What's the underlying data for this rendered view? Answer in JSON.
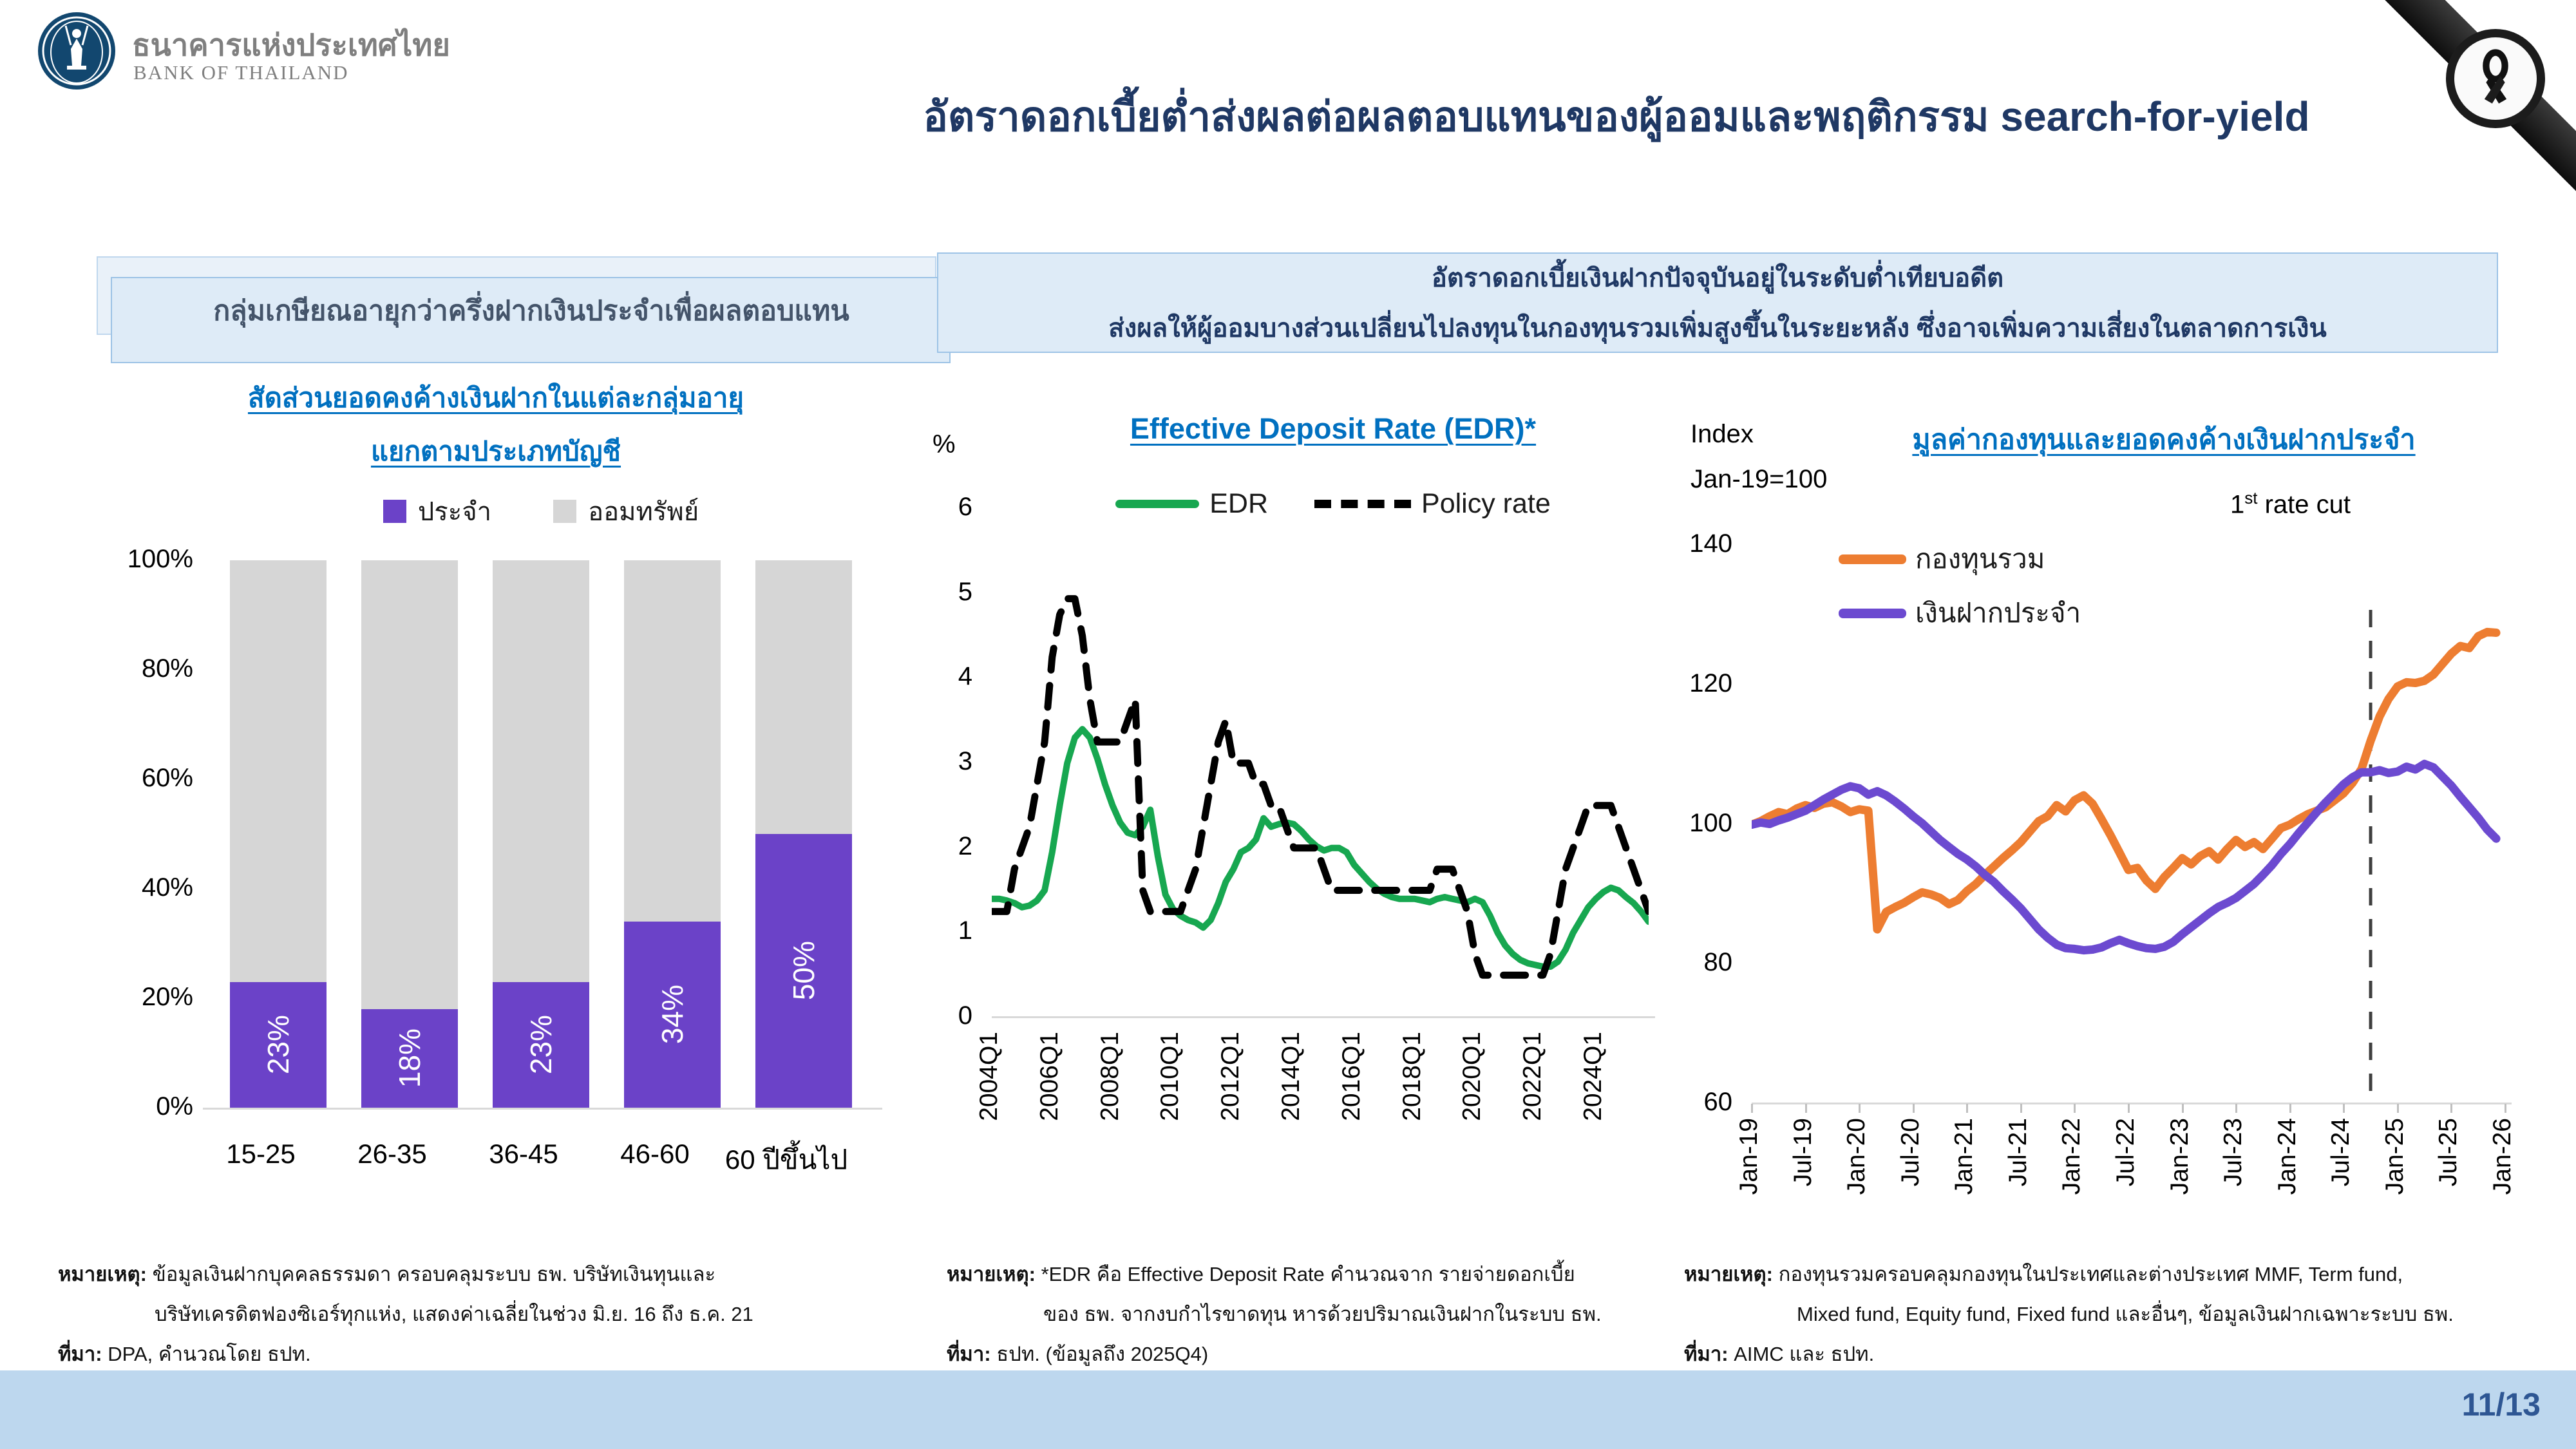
{
  "header": {
    "bank_name_th": "ธนาคารแห่งประเทศไทย",
    "bank_name_en": "BANK OF THAILAND",
    "title": "อัตราดอกเบี้ยต่ำส่งผลต่อผลตอบแทนของผู้ออมและพฤติกรรม search-for-yield"
  },
  "left_panel": {
    "headline": "กลุ่มเกษียณอายุกว่าครึ่งฝากเงินประจำเพื่อผลตอบแทน",
    "chart_title_line1": "สัดส่วนยอดคงค้างเงินฝากในแต่ละกลุ่มอายุ",
    "chart_title_line2": "แยกตามประเภทบัญชี",
    "note_label": "หมายเหตุ:",
    "note_line1": "ข้อมูลเงินฝากบุคคลธรรมดา ครอบคลุมระบบ ธพ. บริษัทเงินทุนและ",
    "note_line2": "บริษัทเครดิตฟองซิเอร์ทุกแห่ง, แสดงค่าเฉลี่ยในช่วง มิ.ย. 16 ถึง ธ.ค. 21",
    "source_label": "ที่มา:",
    "source_text": "DPA, คำนวณโดย ธปท."
  },
  "center_headline": {
    "line1": "อัตราดอกเบี้ยเงินฝากปัจจุบันอยู่ในระดับต่ำเทียบอดีต",
    "line2": "ส่งผลให้ผู้ออมบางส่วนเปลี่ยนไปลงทุนในกองทุนรวมเพิ่มสูงขึ้นในระยะหลัง ซึ่งอาจเพิ่มความเสี่ยงในตลาดการเงิน"
  },
  "middle_panel": {
    "y_axis_label": "%",
    "chart_title": "Effective Deposit Rate (EDR)*",
    "note_label": "หมายเหตุ:",
    "note_line1": "*EDR คือ Effective Deposit Rate คำนวณจาก รายจ่ายดอกเบี้ย",
    "note_line2": "ของ ธพ. จากงบกำไรขาดทุน หารด้วยปริมาณเงินฝากในระบบ ธพ.",
    "source_label": "ที่มา:",
    "source_text": "ธปท. (ข้อมูลถึง 2025Q4)"
  },
  "right_panel": {
    "index_label": "Index",
    "index_base": "Jan-19=100",
    "chart_title": "มูลค่ากองทุนและยอดคงค้างเงินฝากประจำ",
    "annotation_num": "1",
    "annotation_sup": "st",
    "annotation_rest": " rate cut",
    "note_label": "หมายเหตุ:",
    "note_line1": "กองทุนรวมครอบคลุมกองทุนในประเทศและต่างประเทศ MMF, Term fund,",
    "note_line2": "Mixed fund, Equity fund, Fixed fund และอื่นๆ, ข้อมูลเงินฝากเฉพาะระบบ ธพ.",
    "source_label": "ที่มา:",
    "source_text": "AIMC และ ธปท."
  },
  "footer": {
    "page_number": "11/13"
  },
  "colors": {
    "bg": "#FFFFFF",
    "accent_navy": "#1F3864",
    "blue_title": "#0070C0",
    "box_fill": "#DEEBF7",
    "box_border": "#9DC3E6",
    "strip": "#BDD7EE",
    "page_num": "#2E5693",
    "bar_purple": "#6B42C8",
    "bar_gray": "#D6D6D6",
    "edr_green": "#17A750",
    "policy_black": "#000000",
    "fund_orange": "#ED7D31",
    "deposit_purple": "#6C4AD0",
    "logo_navy": "#12476F",
    "text_gray": "#7F7F7F"
  },
  "chart_data": [
    {
      "type": "bar",
      "stacked": true,
      "title": "สัดส่วนยอดคงค้างเงินฝากในแต่ละกลุ่มอายุ แยกตามประเภทบัญชี",
      "categories": [
        "15-25",
        "26-35",
        "36-45",
        "46-60",
        "60 ปีขึ้นไป"
      ],
      "series": [
        {
          "name": "ประจำ",
          "color": "#6B42C8",
          "values": [
            23,
            18,
            23,
            34,
            50
          ],
          "value_labels": [
            "23%",
            "18%",
            "23%",
            "34%",
            "50%"
          ]
        },
        {
          "name": "ออมทรัพย์",
          "color": "#D6D6D6",
          "values": [
            77,
            82,
            77,
            66,
            50
          ]
        }
      ],
      "ylim": [
        0,
        100
      ],
      "yticks": [
        0,
        20,
        40,
        60,
        80,
        100
      ],
      "ytick_suffix": "%",
      "legend_position": "top"
    },
    {
      "type": "line",
      "title": "Effective Deposit Rate (EDR)*",
      "ylabel": "%",
      "ylim": [
        0,
        6
      ],
      "yticks": [
        0,
        1,
        2,
        3,
        4,
        5,
        6
      ],
      "x_frequency": "quarterly",
      "x_range": [
        "2004Q1",
        "2025Q4"
      ],
      "x_axis_span": 87,
      "xtick_labels": [
        "2004Q1",
        "2006Q1",
        "2008Q1",
        "2010Q1",
        "2012Q1",
        "2014Q1",
        "2016Q1",
        "2018Q1",
        "2020Q1",
        "2022Q1",
        "2024Q1"
      ],
      "xtick_positions": [
        0,
        8,
        16,
        24,
        32,
        40,
        48,
        56,
        64,
        72,
        80
      ],
      "series": [
        {
          "name": "EDR",
          "color": "#17A750",
          "style": "solid",
          "values": [
            1.4,
            1.4,
            1.38,
            1.35,
            1.3,
            1.32,
            1.38,
            1.5,
            1.95,
            2.5,
            3.0,
            3.3,
            3.4,
            3.3,
            3.05,
            2.75,
            2.5,
            2.3,
            2.18,
            2.15,
            2.25,
            2.45,
            1.9,
            1.45,
            1.28,
            1.2,
            1.15,
            1.12,
            1.06,
            1.15,
            1.35,
            1.6,
            1.75,
            1.95,
            2.0,
            2.1,
            2.35,
            2.25,
            2.28,
            2.3,
            2.28,
            2.2,
            2.1,
            2.02,
            1.97,
            2.0,
            2.0,
            1.95,
            1.8,
            1.7,
            1.6,
            1.52,
            1.46,
            1.42,
            1.4,
            1.4,
            1.4,
            1.38,
            1.36,
            1.4,
            1.42,
            1.4,
            1.38,
            1.36,
            1.4,
            1.36,
            1.2,
            1.0,
            0.85,
            0.75,
            0.68,
            0.64,
            0.62,
            0.6,
            0.6,
            0.66,
            0.8,
            1.0,
            1.15,
            1.3,
            1.4,
            1.48,
            1.53,
            1.5,
            1.42,
            1.35,
            1.25,
            1.13
          ]
        },
        {
          "name": "Policy rate",
          "color": "#000000",
          "style": "dashed",
          "values": [
            1.25,
            1.25,
            1.25,
            1.75,
            2.0,
            2.25,
            2.75,
            3.25,
            4.25,
            4.75,
            4.94,
            4.94,
            4.5,
            3.75,
            3.25,
            3.25,
            3.25,
            3.25,
            3.5,
            3.75,
            1.5,
            1.25,
            1.25,
            1.25,
            1.25,
            1.25,
            1.5,
            1.75,
            2.25,
            2.75,
            3.25,
            3.5,
            3.0,
            3.0,
            3.0,
            2.75,
            2.75,
            2.5,
            2.5,
            2.25,
            2.0,
            2.0,
            2.0,
            2.0,
            1.75,
            1.5,
            1.5,
            1.5,
            1.5,
            1.5,
            1.5,
            1.5,
            1.5,
            1.5,
            1.5,
            1.5,
            1.5,
            1.5,
            1.5,
            1.75,
            1.75,
            1.75,
            1.5,
            1.25,
            0.75,
            0.5,
            0.5,
            0.5,
            0.5,
            0.5,
            0.5,
            0.5,
            0.5,
            0.5,
            0.75,
            1.25,
            1.75,
            2.0,
            2.25,
            2.5,
            2.5,
            2.5,
            2.5,
            2.25,
            2.0,
            1.75,
            1.5,
            1.25
          ]
        }
      ]
    },
    {
      "type": "line",
      "title": "มูลค่ากองทุนและยอดคงค้างเงินฝากประจำ",
      "ylabel": "Index, Jan-19=100",
      "ylim": [
        60,
        140
      ],
      "yticks": [
        60,
        80,
        100,
        120,
        140
      ],
      "x_frequency": "monthly",
      "x_range": [
        "Jan-19",
        "Dec-25"
      ],
      "x_axis_span": 84,
      "xtick_labels": [
        "Jan-19",
        "Jul-19",
        "Jan-20",
        "Jul-20",
        "Jan-21",
        "Jul-21",
        "Jan-22",
        "Jul-22",
        "Jan-23",
        "Jul-23",
        "Jan-24",
        "Jul-24",
        "Jan-25",
        "Jul-25",
        "Jan-26"
      ],
      "xtick_positions": [
        0,
        6,
        12,
        18,
        24,
        30,
        36,
        42,
        48,
        54,
        60,
        66,
        72,
        78,
        84
      ],
      "annotation": {
        "label": "1st rate cut",
        "x_index": 69,
        "x_month": "Oct-24"
      },
      "series": [
        {
          "name": "กองทุนรวม",
          "color": "#ED7D31",
          "style": "solid",
          "values": [
            100.0,
            100.5,
            101.2,
            101.8,
            101.5,
            102.3,
            102.8,
            102.4,
            103.0,
            103.2,
            102.6,
            101.8,
            102.2,
            102.0,
            85.0,
            87.5,
            88.2,
            88.8,
            89.6,
            90.3,
            90.0,
            89.5,
            88.6,
            89.2,
            90.5,
            91.5,
            92.8,
            94.0,
            95.2,
            96.3,
            97.5,
            99.0,
            100.5,
            101.2,
            102.8,
            101.9,
            103.5,
            104.2,
            103.0,
            100.8,
            98.5,
            96.0,
            93.5,
            93.8,
            92.0,
            90.8,
            92.5,
            93.8,
            95.2,
            94.3,
            95.5,
            96.2,
            95.0,
            96.5,
            97.8,
            96.8,
            97.5,
            96.5,
            98.0,
            99.5,
            100.0,
            100.8,
            101.5,
            102.0,
            102.5,
            103.5,
            104.5,
            106.0,
            108.0,
            112.0,
            115.5,
            118.0,
            119.8,
            120.4,
            120.3,
            120.6,
            121.5,
            123.0,
            124.5,
            125.6,
            125.3,
            127.0,
            127.6,
            127.5
          ]
        },
        {
          "name": "เงินฝากประจำ",
          "color": "#6C4AD0",
          "style": "solid",
          "values": [
            100.0,
            100.3,
            100.1,
            100.6,
            101.0,
            101.5,
            102.0,
            102.8,
            103.6,
            104.3,
            105.0,
            105.5,
            105.2,
            104.3,
            104.8,
            104.2,
            103.3,
            102.3,
            101.2,
            100.2,
            99.0,
            97.8,
            96.8,
            95.8,
            95.0,
            94.0,
            92.8,
            91.8,
            90.5,
            89.3,
            88.0,
            86.5,
            85.0,
            83.8,
            82.8,
            82.3,
            82.2,
            82.0,
            82.1,
            82.4,
            83.0,
            83.5,
            83.0,
            82.6,
            82.3,
            82.2,
            82.5,
            83.2,
            84.3,
            85.3,
            86.3,
            87.3,
            88.2,
            88.8,
            89.5,
            90.5,
            91.5,
            92.8,
            94.2,
            95.8,
            97.2,
            98.8,
            100.3,
            101.8,
            103.2,
            104.5,
            105.8,
            106.8,
            107.5,
            107.5,
            107.8,
            107.4,
            107.6,
            108.3,
            107.9,
            108.7,
            108.2,
            106.9,
            105.6,
            104.0,
            102.5,
            101.0,
            99.3,
            98.0
          ]
        }
      ]
    }
  ]
}
